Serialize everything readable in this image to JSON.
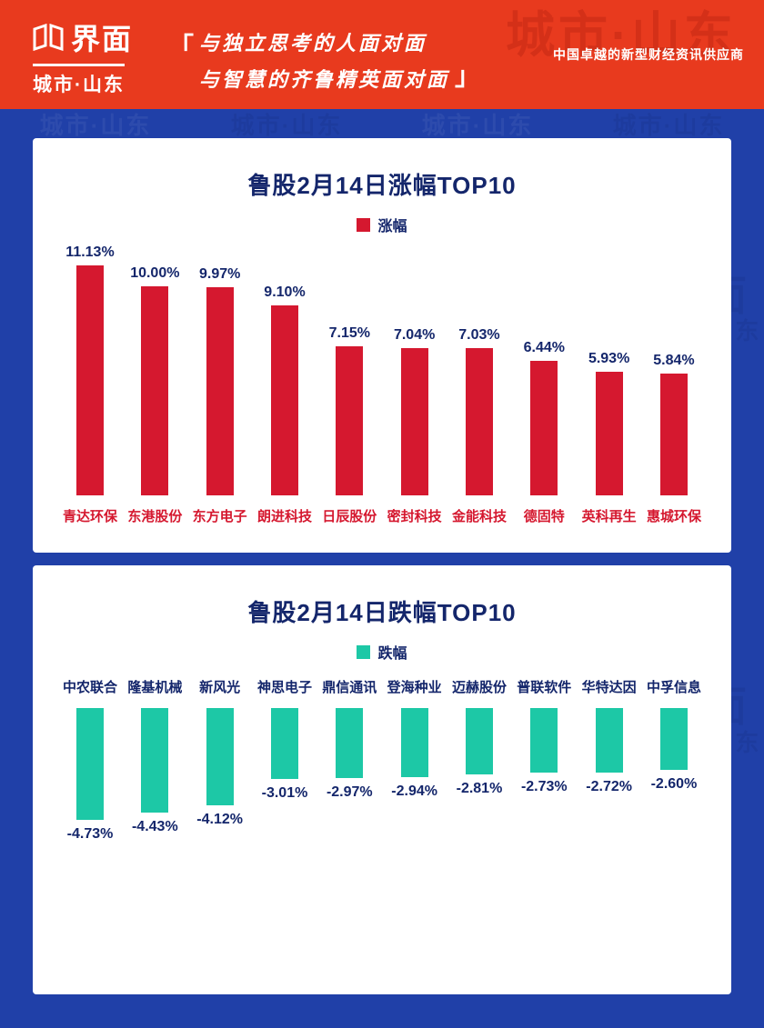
{
  "header": {
    "brand_logo_text": "界面",
    "brand_sub": "城市·山东",
    "quote_open": "「",
    "quote_close": "」",
    "quote_line1": "与独立思考的人面对面",
    "quote_line2": "与智慧的齐鲁精英面对面",
    "tagline": "中国卓越的新型财经资讯供应商"
  },
  "watermark": {
    "line1": "界面",
    "line2": "城市·山东"
  },
  "colors": {
    "header_bg": "#e83a1e",
    "body_bg": "#2040a8",
    "card_bg": "#ffffff",
    "title_color": "#14266b",
    "up_color": "#d5182f",
    "down_color": "#1dc8a6"
  },
  "chart_data": [
    {
      "type": "bar",
      "title": "鲁股2月14日涨幅TOP10",
      "legend": "涨幅",
      "bar_color": "#d5182f",
      "categories": [
        "青达环保",
        "东港股份",
        "东方电子",
        "朗进科技",
        "日辰股份",
        "密封科技",
        "金能科技",
        "德固特",
        "英科再生",
        "惠城环保"
      ],
      "values": [
        11.13,
        10.0,
        9.97,
        9.1,
        7.15,
        7.04,
        7.03,
        6.44,
        5.93,
        5.84
      ],
      "labels": [
        "11.13%",
        "10.00%",
        "9.97%",
        "9.10%",
        "7.15%",
        "7.04%",
        "7.03%",
        "6.44%",
        "5.93%",
        "5.84%"
      ],
      "xlabel": "",
      "ylabel": "",
      "ylim": [
        0,
        12
      ],
      "grid": false,
      "legend_position": "top"
    },
    {
      "type": "bar",
      "title": "鲁股2月14日跌幅TOP10",
      "legend": "跌幅",
      "bar_color": "#1dc8a6",
      "categories": [
        "中农联合",
        "隆基机械",
        "新风光",
        "神思电子",
        "鼎信通讯",
        "登海种业",
        "迈赫股份",
        "普联软件",
        "华特达因",
        "中孚信息"
      ],
      "values": [
        -4.73,
        -4.43,
        -4.12,
        -3.01,
        -2.97,
        -2.94,
        -2.81,
        -2.73,
        -2.72,
        -2.6
      ],
      "labels": [
        "-4.73%",
        "-4.43%",
        "-4.12%",
        "-3.01%",
        "-2.97%",
        "-2.94%",
        "-2.81%",
        "-2.73%",
        "-2.72%",
        "-2.60%"
      ],
      "xlabel": "",
      "ylabel": "",
      "ylim": [
        -5,
        0
      ],
      "grid": false,
      "legend_position": "top"
    }
  ]
}
